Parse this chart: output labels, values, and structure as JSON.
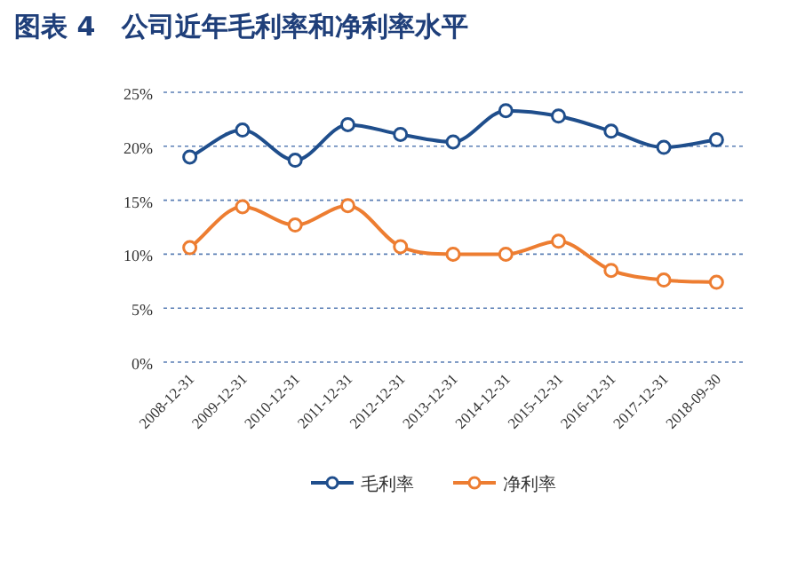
{
  "chart_data": {
    "type": "line",
    "title": "图表 4　公司近年毛利率和净利率水平",
    "categories": [
      "2008-12-31",
      "2009-12-31",
      "2010-12-31",
      "2011-12-31",
      "2012-12-31",
      "2013-12-31",
      "2014-12-31",
      "2015-12-31",
      "2016-12-31",
      "2017-12-31",
      "2018-09-30"
    ],
    "series": [
      {
        "name": "毛利率",
        "color": "#1f4e8c",
        "values": [
          19.0,
          21.5,
          18.7,
          22.0,
          21.1,
          20.4,
          23.3,
          22.8,
          21.4,
          19.9,
          20.6
        ]
      },
      {
        "name": "净利率",
        "color": "#ed7d31",
        "values": [
          10.6,
          14.4,
          12.7,
          14.5,
          10.7,
          10.0,
          10.0,
          11.2,
          8.5,
          7.6,
          7.4
        ]
      }
    ],
    "ylim": [
      0,
      25
    ],
    "yticks": [
      {
        "value": 0,
        "label": "0%"
      },
      {
        "value": 5,
        "label": "5%"
      },
      {
        "value": 10,
        "label": "10%"
      },
      {
        "value": 15,
        "label": "15%"
      },
      {
        "value": 20,
        "label": "20%"
      },
      {
        "value": 25,
        "label": "25%"
      }
    ],
    "grid": "y",
    "legend": "bottom",
    "marker": "circle",
    "line_style": "solid"
  }
}
